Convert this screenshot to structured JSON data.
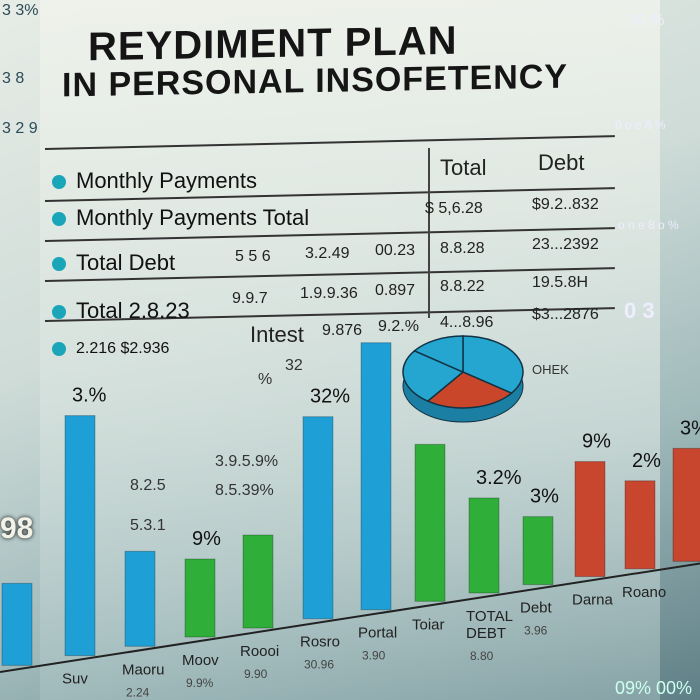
{
  "title": {
    "line1": "REYDIMENT PLAN",
    "line2": "IN PERSONAL INSOFETENCY"
  },
  "table": {
    "header_total": "Total",
    "header_debt": "Debt",
    "rows": [
      {
        "label": "Monthly  Payments",
        "cells": []
      },
      {
        "label": "Monthly Payments  Total",
        "cells": [
          "$ 5,6.28",
          "$9.2..832"
        ]
      },
      {
        "label": "Total Debt",
        "cells": [
          "5 5 6",
          "3.2.49",
          "00.23",
          "8.8.28",
          "23...2392"
        ]
      },
      {
        "label": "Total  2.8.23",
        "cells": [
          "9.9.7",
          "1.9.9.36",
          "0.897",
          "8.8.22",
          "19.5.8H"
        ]
      },
      {
        "label": "2.216  $2.936",
        "cells": [
          "Intest",
          "9.876",
          "9.2.%",
          "4...8.96",
          "$3...2876"
        ]
      }
    ]
  },
  "side_text": {
    "top_left": "3 3%",
    "left1": "3 8",
    "left2": "3 2 9",
    "right_top": "30 %",
    "right1": "0 o e 8 %",
    "right2": "o n e 8 o %",
    "right3": "0 3",
    "right4": "OHEK",
    "left_big": "98",
    "bottom_right": "09% 00%"
  },
  "colors": {
    "blue": "#1e9fd6",
    "green": "#2fae3a",
    "red": "#c8452e",
    "pie_blue": "#25a6d0",
    "pie_red": "#c9462a"
  },
  "chart_data": {
    "type": "bar",
    "title": "",
    "categories": [
      "",
      "Suv",
      "Maoru",
      "Moov",
      "Roooi",
      "Rosro",
      "Portal",
      "Toiar",
      "TOTAL DEBT",
      "Debt",
      "Darna",
      "Roano",
      ""
    ],
    "sub_labels": [
      "",
      "",
      "2.24",
      "9.9%",
      "9.90",
      "30.96",
      "3.90",
      "",
      "8.80",
      "3.96",
      "",
      "",
      ""
    ],
    "values": [
      82,
      240,
      95,
      78,
      93,
      202,
      267,
      157,
      95,
      68,
      115,
      88,
      113
    ],
    "colors": [
      "blue",
      "blue",
      "blue",
      "green",
      "green",
      "blue",
      "blue",
      "green",
      "green",
      "green",
      "red",
      "red",
      "red"
    ],
    "data_labels": [
      "",
      "3.%",
      "",
      "9%",
      "",
      "32%",
      "",
      "",
      "3.2%",
      "3%",
      "9%",
      "2%",
      "3%"
    ],
    "annotations": [
      "8.2.5",
      "3.9.5.9%",
      "8.5.39%",
      "%",
      "5.3.1",
      "32"
    ],
    "pie": {
      "values": [
        35,
        25,
        25,
        15
      ],
      "colors": [
        "pie_blue",
        "pie_red",
        "pie_blue",
        "pie_blue"
      ]
    },
    "grid": true
  }
}
